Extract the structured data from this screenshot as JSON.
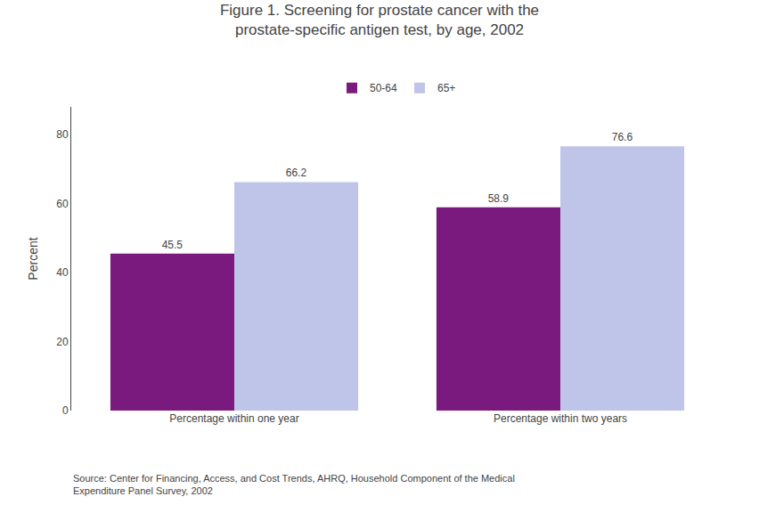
{
  "chart_data": {
    "type": "bar",
    "title": "Figure 1. Screening for prostate cancer with the\nprostate-specific antigen test, by age, 2002",
    "categories": [
      "Percentage within one year",
      "Percentage within two years"
    ],
    "series": [
      {
        "name": "50-64",
        "values": [
          45.5,
          58.9
        ],
        "color": "#7b1a7e"
      },
      {
        "name": "65+",
        "values": [
          66.2,
          76.6
        ],
        "color": "#bfc5e8"
      }
    ],
    "ylabel": "Percent",
    "ylim": [
      0,
      88
    ],
    "yticks": [
      0,
      20,
      40,
      60,
      80
    ],
    "grid": false,
    "legend": "top",
    "data_labels": true,
    "annotations": [
      "Source: Center for Financing, Access, and Cost Trends, AHRQ, Household Component of the Medical\nExpenditure Panel Survey, 2002"
    ]
  }
}
